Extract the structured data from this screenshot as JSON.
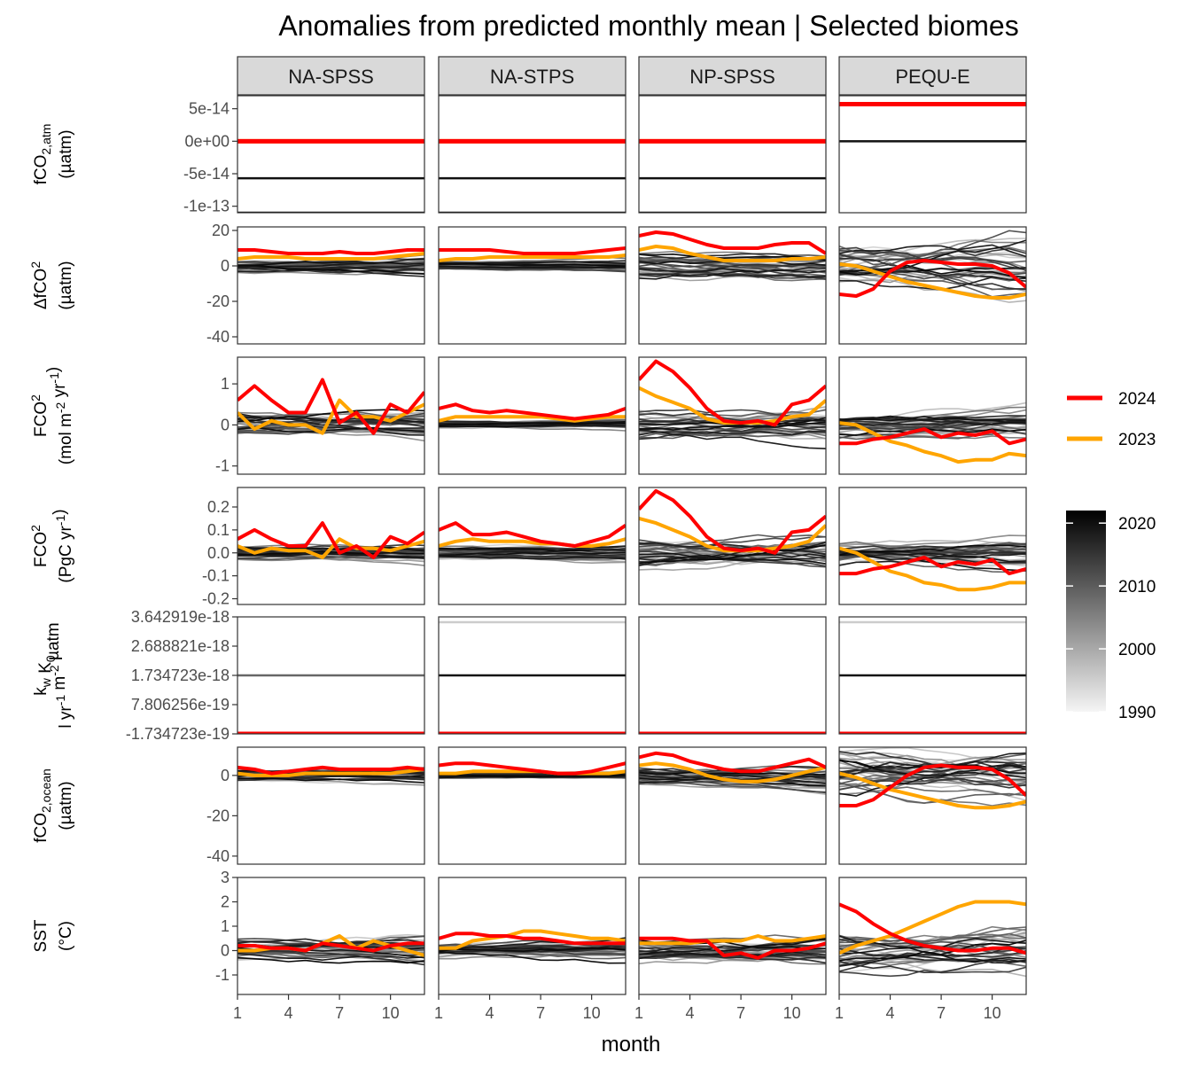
{
  "chart_data": {
    "type": "line",
    "title": "Anomalies from predicted monthly mean | Selected biomes",
    "xlabel": "month",
    "x_ticks": [
      1,
      4,
      7,
      10
    ],
    "x_range": [
      1,
      12
    ],
    "facets": [
      "NA-SPSS",
      "NA-STPS",
      "NP-SPSS",
      "PEQU-E"
    ],
    "rows": [
      {
        "id": "fco2atm",
        "label_lines": [
          [
            "fCO",
            "2,atm"
          ],
          [
            "(µatm)"
          ]
        ],
        "yticks": [
          "5e-14",
          "0e+00",
          "-5e-14",
          "-1e-13"
        ],
        "ytick_values": [
          5e-14,
          0,
          -5e-14,
          -1e-13
        ],
        "ylim": [
          -1.1e-13,
          7e-14
        ],
        "kind": "flat",
        "flat": {
          "NA-SPSS": {
            "gray": [
              -5.7e-14,
              -1.1e-13
            ],
            "y2024": 0,
            "y2023": 0
          },
          "NA-STPS": {
            "gray": [
              -5.7e-14,
              -1.1e-13
            ],
            "y2024": 0,
            "y2023": 0
          },
          "NP-SPSS": {
            "gray": [
              -5.7e-14,
              -1.1e-13
            ],
            "y2024": 0,
            "y2023": 0
          },
          "PEQU-E": {
            "gray": [
              0
            ],
            "y2024": 5.7e-14,
            "y2023": 5.7e-14
          }
        }
      },
      {
        "id": "dfco2",
        "label_lines": [
          [
            "ΔfCO",
            "2"
          ],
          [
            "(µatm)"
          ]
        ],
        "yticks": [
          "20",
          "0",
          "-20",
          "-40"
        ],
        "ytick_values": [
          20,
          0,
          -20,
          -40
        ],
        "ylim": [
          -44,
          22
        ],
        "kind": "lines",
        "y2024": {
          "NA-SPSS": [
            9,
            9,
            8,
            7,
            7,
            7,
            8,
            7,
            7,
            8,
            9,
            9
          ],
          "NA-STPS": [
            9,
            9,
            9,
            9,
            8,
            7,
            7,
            7,
            7,
            8,
            9,
            10
          ],
          "NP-SPSS": [
            17,
            19,
            18,
            15,
            12,
            10,
            10,
            10,
            12,
            13,
            13,
            7
          ],
          "PEQU-E": [
            -16,
            -17,
            -13,
            -3,
            2,
            3,
            2,
            1,
            1,
            0,
            -4,
            -12
          ]
        },
        "y2023": {
          "NA-SPSS": [
            4,
            5,
            5,
            5,
            4,
            4,
            4,
            4,
            4,
            5,
            6,
            7
          ],
          "NA-STPS": [
            3,
            4,
            4,
            5,
            5,
            5,
            5,
            5,
            5,
            5,
            5,
            6
          ],
          "NP-SPSS": [
            9,
            11,
            10,
            7,
            5,
            3,
            3,
            3,
            3,
            4,
            4,
            5
          ],
          "PEQU-E": [
            1,
            0,
            -3,
            -6,
            -9,
            -11,
            -13,
            -15,
            -17,
            -18,
            -18,
            -16
          ]
        }
      },
      {
        "id": "fco2flux",
        "label_lines": [
          [
            "FCO",
            "2"
          ],
          [
            "(mol m",
            "-2",
            " yr",
            "-1",
            ")"
          ]
        ],
        "yticks": [
          "1",
          "0",
          "-1"
        ],
        "ytick_values": [
          1,
          0,
          -1
        ],
        "ylim": [
          -1.2,
          1.65
        ],
        "kind": "lines",
        "y2024": {
          "NA-SPSS": [
            0.6,
            0.95,
            0.6,
            0.3,
            0.3,
            1.1,
            0.05,
            0.3,
            -0.2,
            0.5,
            0.3,
            0.8
          ],
          "NA-STPS": [
            0.4,
            0.5,
            0.35,
            0.3,
            0.35,
            0.3,
            0.25,
            0.2,
            0.15,
            0.2,
            0.25,
            0.4
          ],
          "NP-SPSS": [
            1.1,
            1.55,
            1.3,
            0.9,
            0.4,
            0.1,
            0.05,
            0.1,
            0.0,
            0.5,
            0.6,
            0.95
          ],
          "PEQU-E": [
            -0.45,
            -0.45,
            -0.35,
            -0.3,
            -0.2,
            -0.1,
            -0.3,
            -0.2,
            -0.25,
            -0.15,
            -0.45,
            -0.35
          ]
        },
        "y2023": {
          "NA-SPSS": [
            0.3,
            -0.1,
            0.1,
            0.0,
            0.0,
            -0.2,
            0.6,
            0.2,
            0.2,
            0.1,
            0.3,
            0.5
          ],
          "NA-STPS": [
            0.1,
            0.2,
            0.2,
            0.2,
            0.2,
            0.2,
            0.2,
            0.15,
            0.1,
            0.15,
            0.2,
            0.2
          ],
          "NP-SPSS": [
            0.9,
            0.7,
            0.55,
            0.4,
            0.15,
            0.05,
            0.05,
            0.05,
            0.1,
            0.2,
            0.25,
            0.6
          ],
          "PEQU-E": [
            0.05,
            0.0,
            -0.2,
            -0.4,
            -0.5,
            -0.65,
            -0.75,
            -0.9,
            -0.85,
            -0.85,
            -0.7,
            -0.75
          ]
        }
      },
      {
        "id": "fco2pg",
        "label_lines": [
          [
            "FCO",
            "2"
          ],
          [
            "(PgC yr",
            "-1",
            ")"
          ]
        ],
        "yticks": [
          "0.2",
          "0.1",
          "0.0",
          "-0.1",
          "-0.2"
        ],
        "ytick_values": [
          0.2,
          0.1,
          0,
          -0.1,
          -0.2
        ],
        "ylim": [
          -0.225,
          0.285
        ],
        "kind": "lines",
        "y2024": {
          "NA-SPSS": [
            0.06,
            0.1,
            0.06,
            0.03,
            0.03,
            0.13,
            0.0,
            0.03,
            -0.02,
            0.07,
            0.04,
            0.09
          ],
          "NA-STPS": [
            0.1,
            0.13,
            0.08,
            0.08,
            0.09,
            0.07,
            0.05,
            0.04,
            0.03,
            0.05,
            0.07,
            0.12
          ],
          "NP-SPSS": [
            0.19,
            0.27,
            0.23,
            0.16,
            0.07,
            0.02,
            0.01,
            0.02,
            0.0,
            0.09,
            0.1,
            0.16
          ],
          "PEQU-E": [
            -0.09,
            -0.09,
            -0.07,
            -0.06,
            -0.04,
            -0.02,
            -0.06,
            -0.04,
            -0.05,
            -0.03,
            -0.09,
            -0.07
          ]
        },
        "y2023": {
          "NA-SPSS": [
            0.03,
            0.0,
            0.02,
            0.01,
            0.01,
            -0.02,
            0.06,
            0.02,
            0.02,
            0.01,
            0.03,
            0.05
          ],
          "NA-STPS": [
            0.03,
            0.05,
            0.06,
            0.05,
            0.05,
            0.05,
            0.04,
            0.04,
            0.03,
            0.03,
            0.04,
            0.06
          ],
          "NP-SPSS": [
            0.15,
            0.13,
            0.1,
            0.07,
            0.03,
            0.01,
            0.01,
            0.01,
            0.02,
            0.03,
            0.05,
            0.12
          ],
          "PEQU-E": [
            0.02,
            0.0,
            -0.04,
            -0.08,
            -0.1,
            -0.13,
            -0.14,
            -0.16,
            -0.16,
            -0.15,
            -0.13,
            -0.13
          ]
        }
      },
      {
        "id": "kwk0",
        "label_lines": [
          [
            "k",
            "w",
            " K",
            "0"
          ],
          [
            "l yr",
            "-1",
            " m",
            "-2",
            " µatm"
          ]
        ],
        "yticks": [
          "3.642919e-18",
          "2.688821e-18",
          "1.734723e-18",
          "7.806256e-19",
          "-1.734723e-19"
        ],
        "ytick_values": [
          3.642919e-18,
          2.688821e-18,
          1.734723e-18,
          7.806256e-19,
          -1.734723e-19
        ],
        "ylim": [
          -1.734723e-19,
          3.642919e-18
        ],
        "kind": "flat",
        "flat": {
          "NA-SPSS": {
            "gray": [
              1.734723e-18
            ],
            "y2024": -1.734723e-19,
            "y2023": -1.734723e-19
          },
          "NA-STPS": {
            "gray": [
              1.734723e-18,
              3.47e-18
            ],
            "y2024": -1.734723e-19,
            "y2023": -1.734723e-19
          },
          "NP-SPSS": {
            "gray": [],
            "y2024": -1.734723e-19,
            "y2023": -1.734723e-19
          },
          "PEQU-E": {
            "gray": [
              1.734723e-18,
              3.47e-18
            ],
            "y2024": -1.734723e-19,
            "y2023": -1.734723e-19
          }
        }
      },
      {
        "id": "fco2ocean",
        "label_lines": [
          [
            "fCO",
            "2,ocean"
          ],
          [
            "(µatm)"
          ]
        ],
        "yticks": [
          "0",
          "-20",
          "-40"
        ],
        "ytick_values": [
          0,
          -20,
          -40
        ],
        "ylim": [
          -44,
          14
        ],
        "kind": "lines",
        "y2024": {
          "NA-SPSS": [
            4,
            3,
            1,
            2,
            3,
            4,
            3,
            3,
            3,
            3,
            4,
            3
          ],
          "NA-STPS": [
            5,
            6,
            6,
            5,
            4,
            3,
            2,
            1,
            1,
            2,
            4,
            6
          ],
          "NP-SPSS": [
            9,
            11,
            10,
            7,
            5,
            3,
            2,
            2,
            4,
            6,
            8,
            4
          ],
          "PEQU-E": [
            -15,
            -15,
            -12,
            -6,
            0,
            4,
            5,
            4,
            4,
            3,
            -2,
            -10
          ]
        },
        "y2023": {
          "NA-SPSS": [
            1,
            0,
            0,
            0,
            1,
            1,
            1,
            1,
            1,
            1,
            2,
            3
          ],
          "NA-STPS": [
            1,
            1,
            2,
            2,
            2,
            2,
            2,
            1,
            1,
            1,
            1,
            2
          ],
          "NP-SPSS": [
            5,
            6,
            5,
            3,
            0,
            -2,
            -3,
            -3,
            -2,
            0,
            2,
            4
          ],
          "PEQU-E": [
            1,
            -1,
            -4,
            -7,
            -9,
            -11,
            -13,
            -15,
            -16,
            -16,
            -15,
            -13
          ]
        }
      },
      {
        "id": "sst",
        "label_lines": [
          [
            "SST"
          ],
          [
            "(°C)"
          ]
        ],
        "yticks": [
          "3",
          "2",
          "1",
          "0",
          "-1"
        ],
        "ytick_values": [
          3,
          2,
          1,
          0,
          -1
        ],
        "ylim": [
          -1.8,
          3.0
        ],
        "kind": "lines",
        "y2024": {
          "NA-SPSS": [
            0.2,
            0.2,
            0.1,
            0.1,
            0.0,
            0.3,
            0.2,
            0.1,
            0.0,
            0.2,
            0.3,
            0.3
          ],
          "NA-STPS": [
            0.5,
            0.7,
            0.7,
            0.6,
            0.6,
            0.5,
            0.5,
            0.4,
            0.3,
            0.3,
            0.3,
            0.3
          ],
          "NP-SPSS": [
            0.5,
            0.5,
            0.5,
            0.4,
            0.4,
            -0.2,
            -0.1,
            -0.3,
            0.0,
            0.0,
            0.1,
            0.3
          ],
          "PEQU-E": [
            1.9,
            1.6,
            1.1,
            0.7,
            0.4,
            0.2,
            0.1,
            0.0,
            0.0,
            0.1,
            0.1,
            -0.1
          ]
        },
        "y2023": {
          "NA-SPSS": [
            0.0,
            0.0,
            0.1,
            0.1,
            0.0,
            0.3,
            0.6,
            0.1,
            0.4,
            0.2,
            0.0,
            -0.2
          ],
          "NA-STPS": [
            0.1,
            0.1,
            0.4,
            0.5,
            0.6,
            0.8,
            0.8,
            0.7,
            0.6,
            0.5,
            0.5,
            0.4
          ],
          "NP-SPSS": [
            0.3,
            0.3,
            0.3,
            0.3,
            0.4,
            0.4,
            0.4,
            0.6,
            0.4,
            0.4,
            0.5,
            0.6
          ],
          "PEQU-E": [
            -0.1,
            0.2,
            0.4,
            0.6,
            0.9,
            1.2,
            1.5,
            1.8,
            2.0,
            2.0,
            2.0,
            1.9
          ]
        }
      }
    ],
    "legend": {
      "lines": [
        {
          "label": "2024",
          "color": "#ff0000"
        },
        {
          "label": "2023",
          "color": "#ffa500"
        }
      ],
      "colorbar_ticks": [
        "2020",
        "2010",
        "2000",
        "1990"
      ],
      "colorbar_tick_values": [
        2020,
        2010,
        2000,
        1990
      ],
      "colorbar_range": [
        1990,
        2022
      ]
    },
    "colors": {
      "y2024": "#ff0000",
      "y2023": "#ffa500",
      "strip": "#d9d9d9"
    }
  }
}
